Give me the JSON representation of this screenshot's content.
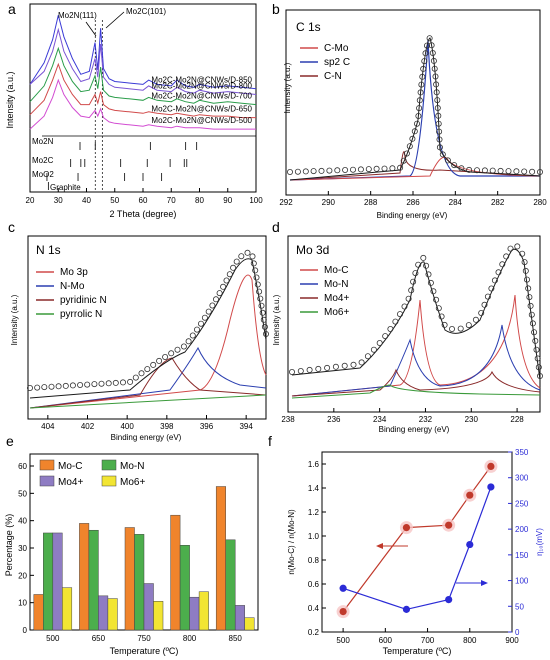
{
  "chart_data": [
    {
      "panel": "a",
      "type": "line",
      "xlabel": "2 Theta (degree)",
      "ylabel": "Intensity (a.u.)",
      "xlim": [
        20,
        100
      ],
      "xticks": [
        20,
        30,
        40,
        50,
        60,
        70,
        80,
        90,
        100
      ],
      "annotations": [
        "Mo2N(111)",
        "Mo2C(101)"
      ],
      "series": [
        {
          "name": "Mo2C-Mo2N@CNWs/D-850",
          "color": "#3b3bd6",
          "x": [
            20,
            25,
            28,
            30,
            32,
            35,
            38,
            41,
            43,
            44,
            45,
            46,
            48,
            50,
            55,
            60,
            62,
            65,
            70,
            72,
            75,
            78,
            80,
            85,
            90,
            95,
            100
          ],
          "y": [
            2.7,
            4.2,
            5.8,
            7.5,
            6.0,
            4.5,
            3.4,
            3.6,
            5.6,
            3.7,
            6.6,
            3.8,
            3.1,
            2.9,
            2.8,
            2.7,
            3.0,
            2.7,
            2.6,
            3.0,
            2.6,
            2.5,
            2.7,
            2.5,
            2.6,
            2.5,
            2.4
          ]
        },
        {
          "name": "Mo2C-Mo2N@CNWs/D-800",
          "color": "#7a55d4",
          "x": [
            20,
            25,
            28,
            30,
            32,
            35,
            38,
            41,
            43,
            44,
            45,
            46,
            48,
            50,
            55,
            60,
            62,
            65,
            70,
            72,
            75,
            78,
            80,
            85,
            90,
            95,
            100
          ],
          "y": [
            2.7,
            3.6,
            5.0,
            6.5,
            5.0,
            3.8,
            2.9,
            3.1,
            4.5,
            3.2,
            5.5,
            3.2,
            2.7,
            2.5,
            2.4,
            2.3,
            2.6,
            2.3,
            2.2,
            2.5,
            2.2,
            2.1,
            2.3,
            2.1,
            2.2,
            2.1,
            2.0
          ]
        },
        {
          "name": "Mo2C-Mo2N@CNWs/D-700",
          "color": "#2a9d4a",
          "x": [
            20,
            25,
            28,
            30,
            32,
            35,
            38,
            41,
            43,
            44,
            45,
            46,
            48,
            50,
            55,
            60,
            62,
            65,
            70,
            72,
            75,
            78,
            80,
            85,
            90,
            95,
            100
          ],
          "y": [
            1.5,
            2.6,
            4.0,
            5.2,
            4.0,
            2.9,
            2.2,
            2.3,
            3.3,
            2.4,
            3.9,
            2.3,
            1.9,
            1.8,
            1.7,
            1.6,
            1.8,
            1.6,
            1.5,
            1.7,
            1.5,
            1.4,
            1.6,
            1.4,
            1.5,
            1.4,
            1.3
          ]
        },
        {
          "name": "Mo2C-Mo2N@CNWs/D-650",
          "color": "#d14a4a",
          "x": [
            20,
            25,
            28,
            30,
            32,
            35,
            38,
            41,
            43,
            44,
            45,
            46,
            48,
            50,
            55,
            60,
            62,
            65,
            70,
            72,
            75,
            78,
            80,
            85,
            90,
            95,
            100
          ],
          "y": [
            0.6,
            1.6,
            3.0,
            4.1,
            3.0,
            2.0,
            1.3,
            1.3,
            2.0,
            1.4,
            2.2,
            1.3,
            1.0,
            0.9,
            0.8,
            0.7,
            0.8,
            0.7,
            0.6,
            0.7,
            0.6,
            0.5,
            0.6,
            0.5,
            0.5,
            0.4,
            0.4
          ]
        },
        {
          "name": "Mo2C-Mo2N@CNWs/D-500",
          "color": "#d24cd2",
          "x": [
            20,
            25,
            28,
            30,
            32,
            35,
            38,
            41,
            43,
            44,
            45,
            46,
            48,
            50,
            55,
            60,
            62,
            65,
            70,
            72,
            75,
            78,
            80,
            85,
            90,
            95,
            100
          ],
          "y": [
            -0.4,
            0.5,
            1.8,
            3.0,
            2.0,
            1.1,
            0.5,
            0.4,
            0.9,
            0.5,
            1.0,
            0.4,
            0.1,
            0.0,
            -0.1,
            -0.2,
            -0.1,
            -0.2,
            -0.3,
            -0.2,
            -0.3,
            -0.3,
            -0.3,
            -0.4,
            -0.4,
            -0.4,
            -0.4
          ]
        }
      ],
      "references": [
        {
          "name": "Mo2N",
          "positions": [
            37.7,
            43.1,
            62.6,
            75.1,
            79.0
          ]
        },
        {
          "name": "Mo2C",
          "positions": [
            34.4,
            38.0,
            39.4,
            52.1,
            61.5,
            69.6,
            74.6,
            75.5
          ]
        },
        {
          "name": "MoO2",
          "positions": [
            26.0,
            37.0,
            53.5,
            60.0,
            66.6
          ]
        },
        {
          "name": "Graphite",
          "positions": [
            26.5
          ]
        }
      ]
    },
    {
      "panel": "b",
      "type": "line",
      "title": "C 1s",
      "xlabel": "Binding energy (eV)",
      "ylabel": "Intensity (a.u.)",
      "xlim": [
        292,
        280
      ],
      "xticks": [
        292,
        290,
        288,
        286,
        284,
        282,
        280
      ],
      "series": [
        {
          "name": "C-Mo",
          "color": "#d14a4a"
        },
        {
          "name": "sp2 C",
          "color": "#2b3fb0"
        },
        {
          "name": "C-N",
          "color": "#8a2a2a"
        }
      ]
    },
    {
      "panel": "c",
      "type": "line",
      "title": "N 1s",
      "xlabel": "Binding energy (eV)",
      "ylabel": "Intensity (a.u.)",
      "xlim": [
        405,
        393
      ],
      "xticks": [
        404,
        402,
        400,
        398,
        396,
        394
      ],
      "series": [
        {
          "name": "Mo 3p",
          "color": "#d14a4a"
        },
        {
          "name": "N-Mo",
          "color": "#2b3fb0"
        },
        {
          "name": "pyridinic N",
          "color": "#8a2a2a"
        },
        {
          "name": "pyrrolic N",
          "color": "#3a9a3a"
        }
      ]
    },
    {
      "panel": "d",
      "type": "line",
      "title": "Mo 3d",
      "xlabel": "Binding energy (eV)",
      "ylabel": "Intensity (a.u.)",
      "xlim": [
        238,
        227
      ],
      "xticks": [
        238,
        236,
        234,
        232,
        230,
        228
      ],
      "series": [
        {
          "name": "Mo-C",
          "color": "#d14a4a"
        },
        {
          "name": "Mo-N",
          "color": "#2b3fb0"
        },
        {
          "name": "Mo4+",
          "color": "#8a2a2a"
        },
        {
          "name": "Mo6+",
          "color": "#3a9a3a"
        }
      ]
    },
    {
      "panel": "e",
      "type": "bar",
      "xlabel": "Temperature (ºC)",
      "ylabel": "Percentage (%)",
      "ylim": [
        0,
        60
      ],
      "yticks": [
        0,
        10,
        20,
        30,
        40,
        50,
        60
      ],
      "categories": [
        "500",
        "650",
        "750",
        "800",
        "850"
      ],
      "series": [
        {
          "name": "Mo-C",
          "color": "#f0842c",
          "values": [
            13.0,
            39.0,
            37.5,
            42.0,
            52.5
          ]
        },
        {
          "name": "Mo-N",
          "color": "#4cae4c",
          "values": [
            35.5,
            36.5,
            35.0,
            31.0,
            33.0
          ]
        },
        {
          "name": "Mo4+",
          "color": "#8e7cc3",
          "values": [
            35.5,
            12.5,
            17.0,
            12.0,
            9.0
          ]
        },
        {
          "name": "Mo6+",
          "color": "#f2e533",
          "values": [
            15.5,
            11.5,
            10.5,
            14.0,
            4.5
          ]
        }
      ]
    },
    {
      "panel": "f",
      "type": "line",
      "xlabel": "Temperature (ºC)",
      "ylabel_left": "n(Mo-C) / n(Mo-N)",
      "ylabel_right": "η₁₀(mV)",
      "xlim": [
        450,
        900
      ],
      "xticks": [
        500,
        600,
        700,
        800,
        900
      ],
      "ylim_left": [
        0.2,
        1.7
      ],
      "yticks_left": [
        0.2,
        0.4,
        0.6,
        0.8,
        1.0,
        1.2,
        1.4,
        1.6
      ],
      "ylim_right": [
        0,
        350
      ],
      "yticks_right": [
        0,
        50,
        100,
        150,
        200,
        250,
        300,
        350
      ],
      "series": [
        {
          "name": "n(Mo-C) / n(Mo-N)",
          "axis": "left",
          "color": "#c0392b",
          "x": [
            500,
            650,
            750,
            800,
            850
          ],
          "y": [
            0.37,
            1.07,
            1.09,
            1.34,
            1.58
          ]
        },
        {
          "name": "η₁₀",
          "axis": "right",
          "color": "#2b2bd6",
          "x": [
            500,
            650,
            750,
            800,
            850
          ],
          "y": [
            85,
            44,
            63,
            170,
            282
          ]
        }
      ]
    }
  ],
  "panel_letters": [
    "a",
    "b",
    "c",
    "d",
    "e",
    "f"
  ]
}
